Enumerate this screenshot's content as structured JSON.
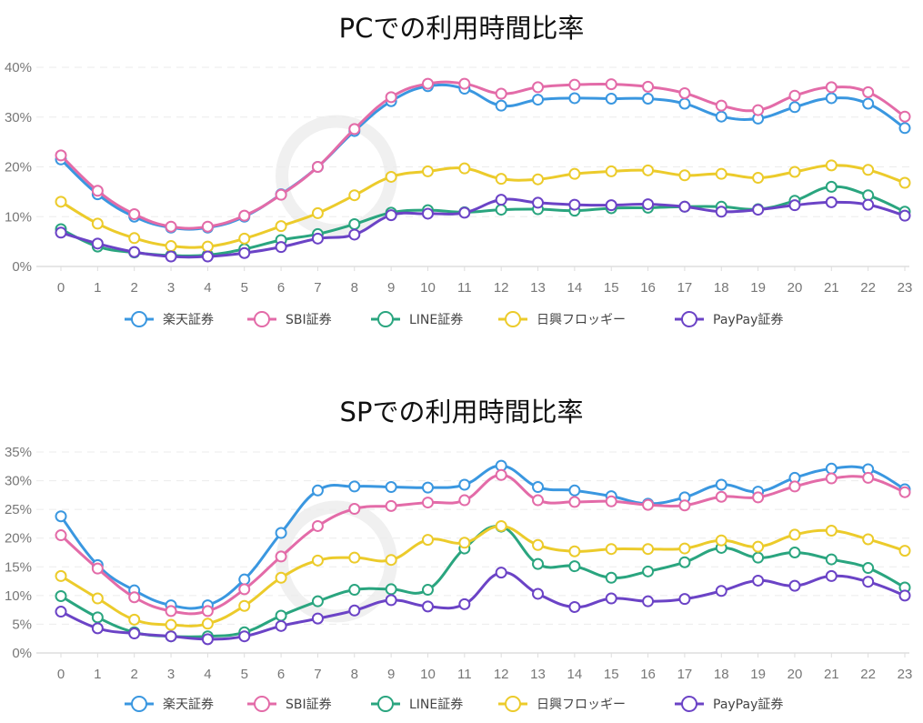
{
  "chart_data": [
    {
      "type": "line",
      "title": "PCでの利用時間比率",
      "x": [
        0,
        1,
        2,
        3,
        4,
        5,
        6,
        7,
        8,
        9,
        10,
        11,
        12,
        13,
        14,
        15,
        16,
        17,
        18,
        19,
        20,
        21,
        22,
        23
      ],
      "ylim": [
        0,
        40
      ],
      "yticks": [
        "0%",
        "10%",
        "20%",
        "30%",
        "40%"
      ],
      "ytick_values": [
        0,
        10,
        20,
        30,
        40
      ],
      "grid": true,
      "legend": "bottom",
      "series": [
        {
          "name": "楽天証券",
          "color": "#3a97e0",
          "values": [
            21.5,
            14.5,
            10,
            7.8,
            7.8,
            10,
            14.5,
            20,
            27.2,
            33.2,
            36.2,
            35.7,
            32.3,
            33.5,
            33.8,
            33.7,
            33.7,
            32.7,
            30.1,
            29.7,
            32,
            33.8,
            32.7,
            27.8
          ]
        },
        {
          "name": "SBI証券",
          "color": "#e36ba8",
          "values": [
            22.3,
            15.2,
            10.5,
            8,
            8,
            10.2,
            14.4,
            20,
            27.6,
            34,
            36.7,
            36.7,
            34.7,
            36,
            36.5,
            36.6,
            36.1,
            34.8,
            32.3,
            31.4,
            34.3,
            36,
            35,
            30.1
          ]
        },
        {
          "name": "LINE証券",
          "color": "#2aa57f",
          "values": [
            7.5,
            4,
            2.8,
            2.2,
            2.3,
            3.5,
            5.3,
            6.5,
            8.5,
            10.8,
            11.3,
            10.9,
            11.4,
            11.5,
            11.2,
            11.7,
            11.8,
            12,
            12,
            11.5,
            13.2,
            16,
            14.3,
            11
          ]
        },
        {
          "name": "日興フロッギー",
          "color": "#eccb2b",
          "values": [
            13,
            8.6,
            5.7,
            4.1,
            4,
            5.6,
            8.1,
            10.7,
            14.3,
            18,
            19.1,
            19.7,
            17.6,
            17.5,
            18.6,
            19.1,
            19.3,
            18.3,
            18.6,
            17.8,
            19,
            20.3,
            19.4,
            16.8
          ]
        },
        {
          "name": "PayPay証券",
          "color": "#6b43c6",
          "values": [
            6.8,
            4.6,
            2.9,
            2,
            2,
            2.7,
            3.9,
            5.6,
            6.4,
            10.3,
            10.6,
            10.8,
            13.4,
            12.8,
            12.4,
            12.3,
            12.5,
            12,
            11,
            11.4,
            12.3,
            12.9,
            12.4,
            10.2
          ]
        }
      ]
    },
    {
      "type": "line",
      "title": "SPでの利用時間比率",
      "x": [
        0,
        1,
        2,
        3,
        4,
        5,
        6,
        7,
        8,
        9,
        10,
        11,
        12,
        13,
        14,
        15,
        16,
        17,
        18,
        19,
        20,
        21,
        22,
        23
      ],
      "ylim": [
        0,
        35
      ],
      "yticks": [
        "0%",
        "5%",
        "10%",
        "15%",
        "20%",
        "25%",
        "30%",
        "35%"
      ],
      "ytick_values": [
        0,
        5,
        10,
        15,
        20,
        25,
        30,
        35
      ],
      "grid": true,
      "legend": "bottom",
      "series": [
        {
          "name": "楽天証券",
          "color": "#3a97e0",
          "values": [
            23.8,
            15.3,
            10.9,
            8.3,
            8.3,
            12.8,
            20.9,
            28.3,
            29,
            28.9,
            28.8,
            29.3,
            32.6,
            28.9,
            28.3,
            27.3,
            26,
            27.1,
            29.3,
            28.1,
            30.5,
            32.1,
            32,
            28.5
          ]
        },
        {
          "name": "SBI証券",
          "color": "#e36ba8",
          "values": [
            20.5,
            14.7,
            9.7,
            7.3,
            7.3,
            11.1,
            16.8,
            22.1,
            25.1,
            25.6,
            26.2,
            26.6,
            31,
            26.6,
            26.3,
            26.4,
            25.8,
            25.7,
            27.2,
            27.1,
            29,
            30.4,
            30.5,
            28
          ]
        },
        {
          "name": "LINE証券",
          "color": "#2aa57f",
          "values": [
            9.9,
            6.2,
            3.6,
            2.9,
            2.9,
            3.6,
            6.5,
            9,
            11,
            11.1,
            11,
            18.2,
            22,
            15.5,
            15.1,
            13.1,
            14.2,
            15.8,
            18.3,
            16.6,
            17.5,
            16.3,
            14.8,
            11.4
          ]
        },
        {
          "name": "日興フロッギー",
          "color": "#eccb2b",
          "values": [
            13.4,
            9.5,
            5.8,
            4.9,
            5.1,
            8.2,
            13.1,
            16.1,
            16.6,
            16.2,
            19.7,
            19.2,
            22.1,
            18.8,
            17.7,
            18.1,
            18.1,
            18.2,
            19.6,
            18.5,
            20.6,
            21.3,
            19.8,
            17.8
          ]
        },
        {
          "name": "PayPay証券",
          "color": "#6b43c6",
          "values": [
            7.2,
            4.3,
            3.4,
            2.9,
            2.4,
            2.9,
            4.7,
            6,
            7.4,
            9.2,
            8.1,
            8.5,
            14,
            10.3,
            8,
            9.5,
            9,
            9.4,
            10.8,
            12.6,
            11.7,
            13.4,
            12.4,
            10
          ]
        }
      ]
    }
  ]
}
